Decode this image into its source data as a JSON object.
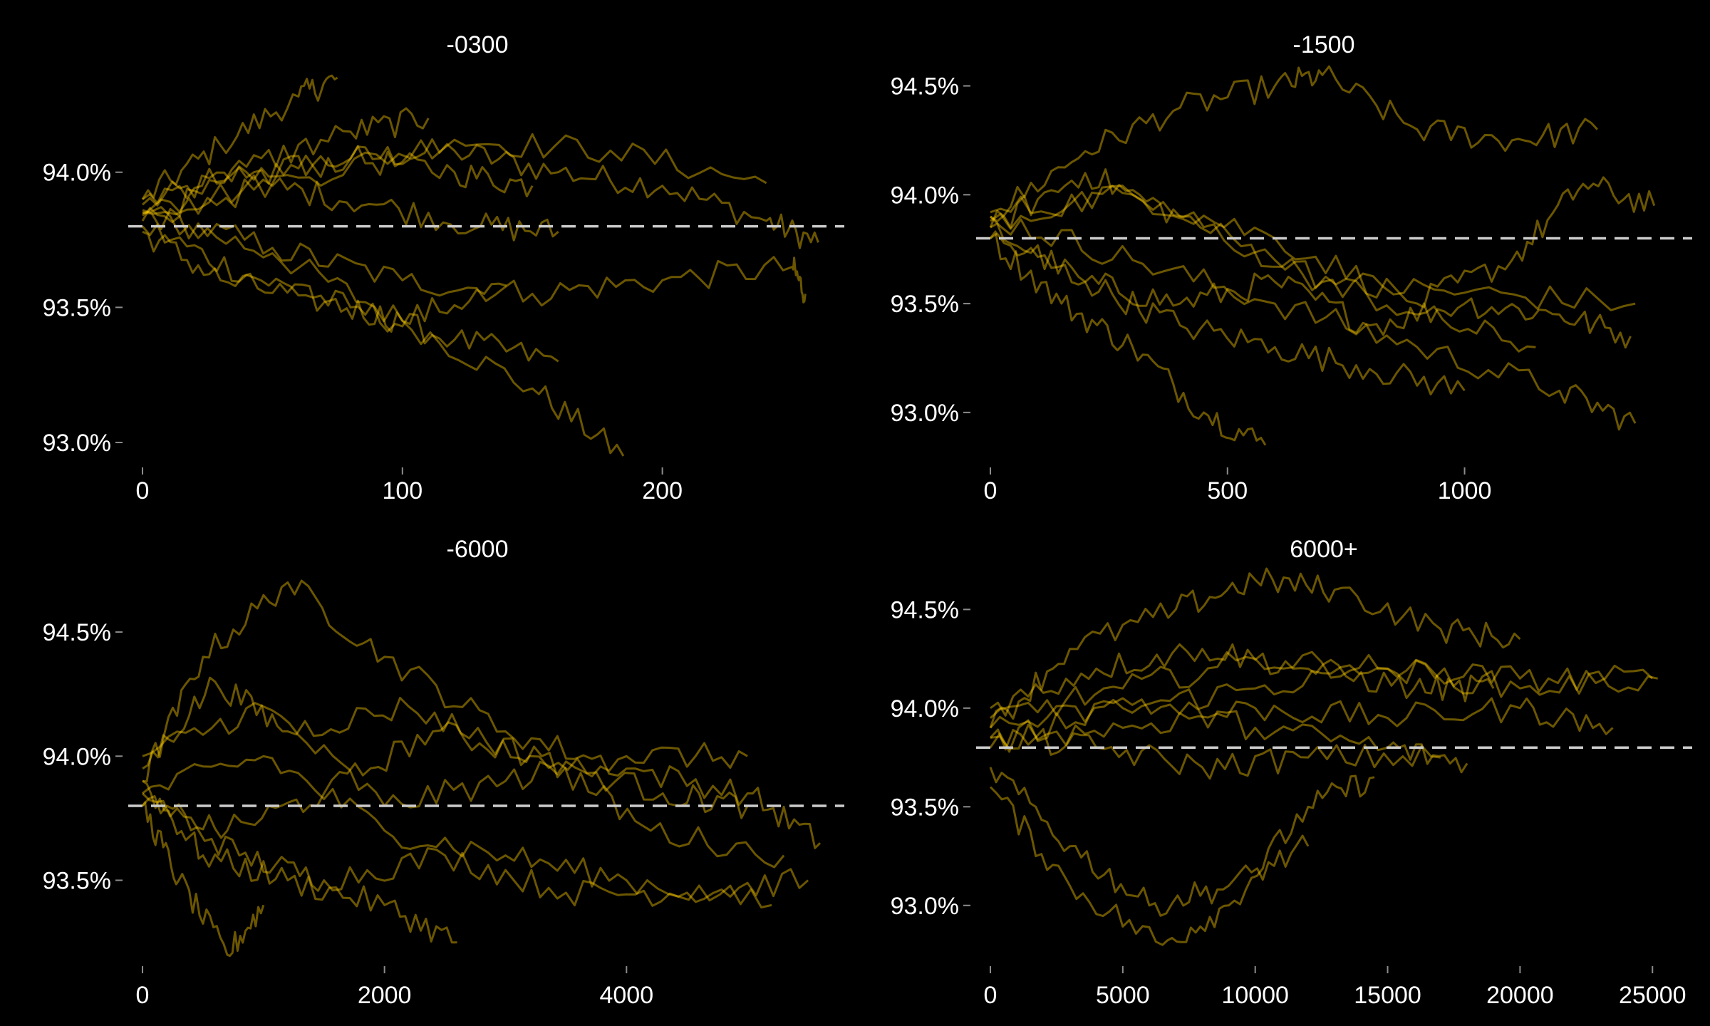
{
  "figure": {
    "background": "#000000",
    "line_color": "#ffcc00",
    "reference_line_color": "#cccccc"
  },
  "chart_data": [
    {
      "type": "line",
      "title": "-0300",
      "xlabel": "",
      "ylabel": "",
      "xlim": [
        0,
        270
      ],
      "ylim": [
        92.95,
        94.4
      ],
      "x_ticks": [
        0,
        100,
        200
      ],
      "x_tick_labels": [
        "0",
        "100",
        "200"
      ],
      "y_ticks": [
        93.0,
        93.5,
        94.0
      ],
      "y_tick_labels": [
        "93.0%",
        "93.5%",
        "94.0%"
      ],
      "reference_line": 93.8,
      "grid": false,
      "legend": "none",
      "series": [
        {
          "x": [
            0,
            40,
            80,
            120,
            160,
            200,
            240,
            260
          ],
          "y": [
            93.88,
            94.0,
            94.05,
            94.08,
            94.0,
            93.95,
            93.82,
            93.74
          ]
        },
        {
          "x": [
            0,
            30,
            60,
            75
          ],
          "y": [
            93.9,
            94.1,
            94.28,
            94.35
          ]
        },
        {
          "x": [
            0,
            50,
            100,
            150,
            185
          ],
          "y": [
            93.85,
            93.7,
            93.45,
            93.2,
            92.95
          ]
        },
        {
          "x": [
            0,
            40,
            80,
            120,
            160
          ],
          "y": [
            93.8,
            93.62,
            93.5,
            93.38,
            93.3
          ]
        },
        {
          "x": [
            0,
            50,
            100,
            150,
            200,
            250,
            255
          ],
          "y": [
            93.85,
            93.72,
            93.6,
            93.55,
            93.6,
            93.65,
            93.55
          ]
        },
        {
          "x": [
            0,
            40,
            80,
            120,
            150
          ],
          "y": [
            93.82,
            93.98,
            94.05,
            94.0,
            93.95
          ]
        },
        {
          "x": [
            0,
            60,
            120,
            180,
            240
          ],
          "y": [
            93.86,
            93.98,
            94.12,
            94.08,
            93.96
          ]
        },
        {
          "x": [
            0,
            30,
            70,
            100,
            140
          ],
          "y": [
            93.78,
            93.6,
            93.52,
            93.45,
            93.58
          ]
        },
        {
          "x": [
            0,
            50,
            90,
            130,
            160
          ],
          "y": [
            93.84,
            93.95,
            93.88,
            93.8,
            93.78
          ]
        },
        {
          "x": [
            0,
            40,
            80,
            110
          ],
          "y": [
            93.9,
            94.02,
            94.15,
            94.2
          ]
        }
      ]
    },
    {
      "type": "line",
      "title": "-1500",
      "xlabel": "",
      "ylabel": "",
      "xlim": [
        0,
        1480
      ],
      "ylim": [
        92.8,
        94.6
      ],
      "x_ticks": [
        0,
        500,
        1000
      ],
      "x_tick_labels": [
        "0",
        "500",
        "1000"
      ],
      "y_ticks": [
        93.0,
        93.5,
        94.0,
        94.5
      ],
      "y_tick_labels": [
        "93.0%",
        "93.5%",
        "94.0%",
        "94.5%"
      ],
      "reference_line": 93.8,
      "grid": false,
      "legend": "none",
      "series": [
        {
          "x": [
            0,
            200,
            400,
            600,
            700,
            900,
            1100,
            1280
          ],
          "y": [
            93.9,
            94.2,
            94.4,
            94.5,
            94.55,
            94.3,
            94.25,
            94.3
          ]
        },
        {
          "x": [
            0,
            200,
            400,
            600,
            800,
            1000,
            1200,
            1350
          ],
          "y": [
            93.85,
            93.6,
            93.5,
            93.6,
            93.4,
            93.5,
            93.45,
            93.35
          ]
        },
        {
          "x": [
            0,
            150,
            300,
            450,
            580
          ],
          "y": [
            93.8,
            93.5,
            93.3,
            93.0,
            92.85
          ]
        },
        {
          "x": [
            0,
            300,
            600,
            900,
            1200,
            1360
          ],
          "y": [
            93.9,
            93.7,
            93.5,
            93.3,
            93.1,
            92.95
          ]
        },
        {
          "x": [
            0,
            300,
            600,
            900,
            1100,
            1250,
            1400
          ],
          "y": [
            93.92,
            94.0,
            93.8,
            93.5,
            93.7,
            94.05,
            93.95
          ]
        },
        {
          "x": [
            0,
            200,
            400,
            700,
            1000,
            1360
          ],
          "y": [
            93.85,
            94.1,
            93.9,
            93.6,
            93.55,
            93.5
          ]
        },
        {
          "x": [
            0,
            200,
            400,
            600,
            800,
            1000
          ],
          "y": [
            93.8,
            93.6,
            93.4,
            93.3,
            93.2,
            93.1
          ]
        },
        {
          "x": [
            0,
            300,
            600,
            900,
            1150
          ],
          "y": [
            93.88,
            94.0,
            93.7,
            93.45,
            93.3
          ]
        }
      ]
    },
    {
      "type": "line",
      "title": "-6000",
      "xlabel": "",
      "ylabel": "",
      "xlim": [
        0,
        5800
      ],
      "ylim": [
        93.2,
        94.75
      ],
      "x_ticks": [
        0,
        2000,
        4000
      ],
      "x_tick_labels": [
        "0",
        "2000",
        "4000"
      ],
      "y_ticks": [
        93.5,
        94.0,
        94.5
      ],
      "y_tick_labels": [
        "93.5%",
        "94.0%",
        "94.5%"
      ],
      "reference_line": 93.8,
      "grid": false,
      "legend": "none",
      "series": [
        {
          "x": [
            0,
            500,
            1200,
            2000,
            3000,
            4000,
            5000,
            5600
          ],
          "y": [
            93.9,
            94.4,
            94.7,
            94.4,
            94.1,
            93.95,
            93.85,
            93.65
          ]
        },
        {
          "x": [
            0,
            800,
            1500,
            2500,
            3500,
            4500,
            5500
          ],
          "y": [
            93.85,
            93.6,
            93.5,
            93.6,
            93.45,
            93.45,
            93.5
          ]
        },
        {
          "x": [
            0,
            300,
            700,
            1000
          ],
          "y": [
            93.8,
            93.5,
            93.2,
            93.4
          ]
        },
        {
          "x": [
            0,
            500,
            1200,
            2000,
            2600
          ],
          "y": [
            93.9,
            93.6,
            93.5,
            93.4,
            93.25
          ]
        },
        {
          "x": [
            0,
            1000,
            2000,
            3000,
            4000,
            5000
          ],
          "y": [
            94.0,
            94.2,
            93.8,
            93.9,
            94.0,
            94.0
          ]
        },
        {
          "x": [
            0,
            1000,
            2000,
            3000,
            4000,
            5200
          ],
          "y": [
            93.85,
            94.0,
            93.7,
            93.6,
            93.5,
            93.4
          ]
        },
        {
          "x": [
            0,
            600,
            1200,
            2200,
            3200,
            4300,
            5000
          ],
          "y": [
            93.95,
            94.3,
            94.1,
            94.2,
            94.0,
            93.85,
            93.8
          ]
        },
        {
          "x": [
            0,
            700,
            1500,
            2400,
            3300,
            4200,
            5300
          ],
          "y": [
            93.8,
            93.7,
            93.85,
            94.1,
            94.0,
            93.7,
            93.6
          ]
        }
      ]
    },
    {
      "type": "line",
      "title": "6000+",
      "xlabel": "",
      "ylabel": "",
      "xlim": [
        0,
        26500
      ],
      "ylim": [
        92.75,
        94.7
      ],
      "x_ticks": [
        0,
        5000,
        10000,
        15000,
        20000,
        25000
      ],
      "x_tick_labels": [
        "0",
        "5000",
        "10000",
        "15000",
        "20000",
        "25000"
      ],
      "y_ticks": [
        93.0,
        93.5,
        94.0,
        94.5
      ],
      "y_tick_labels": [
        "93.0%",
        "93.5%",
        "94.0%",
        "94.5%"
      ],
      "reference_line": 93.8,
      "grid": false,
      "legend": "none",
      "series": [
        {
          "x": [
            0,
            3000,
            7000,
            10000,
            13000,
            17000,
            20000
          ],
          "y": [
            93.9,
            94.3,
            94.5,
            94.65,
            94.6,
            94.4,
            94.35
          ]
        },
        {
          "x": [
            0,
            3000,
            6500,
            9000,
            12000,
            14500
          ],
          "y": [
            93.6,
            93.1,
            92.8,
            93.0,
            93.5,
            93.65
          ]
        },
        {
          "x": [
            0,
            5000,
            10000,
            15000,
            20000,
            25000
          ],
          "y": [
            93.9,
            94.0,
            94.1,
            94.2,
            94.15,
            94.15
          ]
        },
        {
          "x": [
            0,
            5000,
            10000,
            15000,
            20000,
            23500
          ],
          "y": [
            93.85,
            93.9,
            94.0,
            93.95,
            94.0,
            93.9
          ]
        },
        {
          "x": [
            0,
            5000,
            10000,
            15000,
            18000
          ],
          "y": [
            93.8,
            94.05,
            93.9,
            93.8,
            93.72
          ]
        },
        {
          "x": [
            0,
            4000,
            8000,
            12000,
            16000,
            19000
          ],
          "y": [
            94.0,
            94.2,
            94.3,
            94.2,
            94.1,
            94.1
          ]
        },
        {
          "x": [
            0,
            3000,
            6000,
            9000,
            12000
          ],
          "y": [
            93.7,
            93.3,
            93.0,
            93.1,
            93.3
          ]
        },
        {
          "x": [
            0,
            5000,
            10000,
            15000,
            20000,
            25200
          ],
          "y": [
            93.95,
            94.1,
            94.25,
            94.2,
            94.1,
            94.15
          ]
        },
        {
          "x": [
            0,
            4000,
            8000,
            12000,
            17000
          ],
          "y": [
            93.85,
            93.8,
            93.7,
            93.75,
            93.75
          ]
        }
      ]
    }
  ]
}
